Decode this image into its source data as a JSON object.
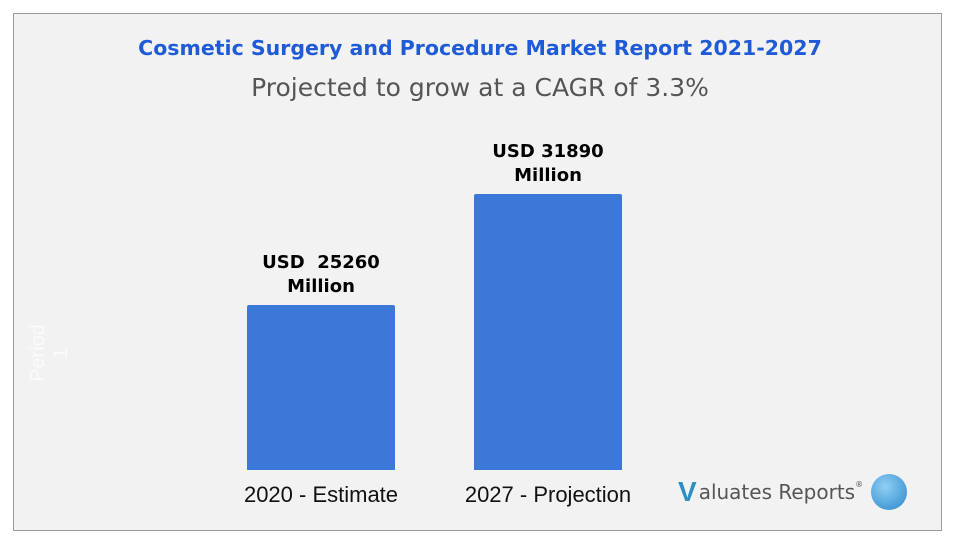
{
  "title": "Cosmetic Surgery and Procedure Market Report 2021-2027",
  "subtitle": "Projected to grow at a CAGR of 3.3%",
  "watermark": "Period 1",
  "logo": {
    "brand": "Valuates Reports",
    "mark": "V",
    "text": "aluates Reports",
    "registered": "®"
  },
  "colors": {
    "bar": "#3c78d8",
    "title": "#1f5bd6"
  },
  "chart_data": {
    "type": "bar",
    "title": "Cosmetic Surgery and Procedure Market Report 2021-2027",
    "subtitle": "Projected to grow at a CAGR of 3.3%",
    "categories": [
      "2020 - Estimate",
      "2027 - Projection"
    ],
    "values": [
      25260,
      31890
    ],
    "data_labels": [
      "USD  25260\nMillion",
      "USD 31890\nMillion"
    ],
    "unit": "USD Million",
    "ylim": [
      15400,
      34000
    ],
    "grid": false,
    "legend": "none"
  }
}
